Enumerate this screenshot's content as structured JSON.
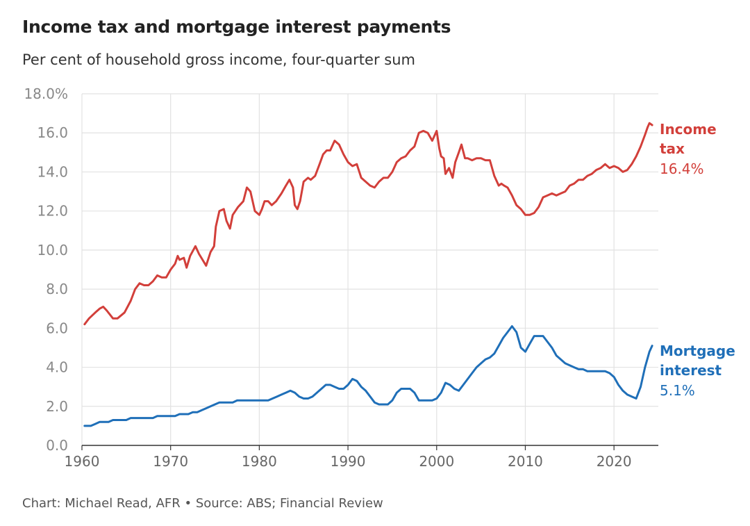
{
  "header": {
    "title": "Income tax and mortgage interest payments",
    "subtitle": "Per cent of household gross income, four-quarter sum"
  },
  "footer": {
    "credit": "Chart: Michael Read, AFR • Source: ABS; Financial Review"
  },
  "chart_data": {
    "type": "line",
    "title": "Income tax and mortgage interest payments",
    "subtitle": "Per cent of household gross income, four-quarter sum",
    "xlabel": "",
    "ylabel": "",
    "xlim": [
      1960,
      2025
    ],
    "ylim": [
      0,
      18
    ],
    "grid": true,
    "y_ticks": [
      "18.0%",
      "16.0",
      "14.0",
      "12.0",
      "10.0",
      "8.0",
      "6.0",
      "4.0",
      "2.0",
      "0.0"
    ],
    "y_tick_values": [
      18,
      16,
      14,
      12,
      10,
      8,
      6,
      4,
      2,
      0
    ],
    "x_ticks": [
      "1960",
      "1970",
      "1980",
      "1990",
      "2000",
      "2010",
      "2020"
    ],
    "x_tick_values": [
      1960,
      1970,
      1980,
      1990,
      2000,
      2010,
      2020
    ],
    "series": [
      {
        "name": "Income tax",
        "label_line1": "Income",
        "label_line2": "tax",
        "end_label": "16.4%",
        "color": "#d23f3a",
        "x": [
          1960.3,
          1960.8,
          1961.5,
          1962.0,
          1962.4,
          1962.8,
          1963.5,
          1964.0,
          1964.8,
          1965.5,
          1966.0,
          1966.5,
          1967.0,
          1967.5,
          1968.0,
          1968.5,
          1969.0,
          1969.5,
          1970.0,
          1970.5,
          1970.8,
          1971.0,
          1971.5,
          1971.8,
          1972.2,
          1972.8,
          1973.2,
          1973.6,
          1974.0,
          1974.5,
          1974.9,
          1975.1,
          1975.5,
          1976.0,
          1976.3,
          1976.7,
          1977.0,
          1977.3,
          1977.6,
          1977.8,
          1978.2,
          1978.6,
          1979.0,
          1979.5,
          1980.0,
          1980.3,
          1980.6,
          1981.0,
          1981.4,
          1981.9,
          1982.5,
          1983.0,
          1983.4,
          1983.8,
          1984.0,
          1984.3,
          1984.6,
          1985.0,
          1985.5,
          1985.8,
          1986.3,
          1986.8,
          1987.2,
          1987.6,
          1988.0,
          1988.5,
          1989.0,
          1989.5,
          1990.0,
          1990.5,
          1991.0,
          1991.5,
          1992.0,
          1992.5,
          1993.0,
          1993.5,
          1994.0,
          1994.5,
          1995.0,
          1995.5,
          1996.0,
          1996.5,
          1997.0,
          1997.5,
          1998.0,
          1998.5,
          1999.0,
          1999.5,
          2000.0,
          2000.3,
          2000.5,
          2000.8,
          2001.0,
          2001.4,
          2001.8,
          2002.1,
          2002.5,
          2002.8,
          2003.2,
          2003.5,
          2004.0,
          2004.5,
          2005.0,
          2005.5,
          2006.0,
          2006.5,
          2007.0,
          2007.3,
          2007.6,
          2008.0,
          2008.5,
          2009.0,
          2009.5,
          2010.0,
          2010.5,
          2011.0,
          2011.5,
          2012.0,
          2012.5,
          2013.0,
          2013.5,
          2014.0,
          2014.5,
          2015.0,
          2015.5,
          2016.0,
          2016.5,
          2017.0,
          2017.5,
          2018.0,
          2018.5,
          2019.0,
          2019.5,
          2020.0,
          2020.5,
          2021.0,
          2021.5,
          2022.0,
          2022.5,
          2023.0,
          2023.5,
          2023.8,
          2024.0,
          2024.3
        ],
        "values": [
          6.2,
          6.5,
          6.8,
          7.0,
          7.1,
          6.9,
          6.5,
          6.5,
          6.8,
          7.4,
          8.0,
          8.3,
          8.2,
          8.2,
          8.4,
          8.7,
          8.6,
          8.6,
          9.0,
          9.3,
          9.7,
          9.5,
          9.6,
          9.1,
          9.7,
          10.2,
          9.8,
          9.5,
          9.2,
          9.9,
          10.2,
          11.2,
          12.0,
          12.1,
          11.5,
          11.1,
          11.8,
          12.0,
          12.2,
          12.3,
          12.5,
          13.2,
          13.0,
          12.0,
          11.8,
          12.1,
          12.5,
          12.5,
          12.3,
          12.5,
          12.9,
          13.3,
          13.6,
          13.2,
          12.3,
          12.1,
          12.5,
          13.5,
          13.7,
          13.6,
          13.8,
          14.4,
          14.9,
          15.1,
          15.1,
          15.6,
          15.4,
          14.9,
          14.5,
          14.3,
          14.4,
          13.7,
          13.5,
          13.3,
          13.2,
          13.5,
          13.7,
          13.7,
          14.0,
          14.5,
          14.7,
          14.8,
          15.1,
          15.3,
          16.0,
          16.1,
          16.0,
          15.6,
          16.1,
          15.2,
          14.8,
          14.7,
          13.9,
          14.2,
          13.7,
          14.5,
          15.0,
          15.4,
          14.7,
          14.7,
          14.6,
          14.7,
          14.7,
          14.6,
          14.6,
          13.8,
          13.3,
          13.4,
          13.3,
          13.2,
          12.8,
          12.3,
          12.1,
          11.8,
          11.8,
          11.9,
          12.2,
          12.7,
          12.8,
          12.9,
          12.8,
          12.9,
          13.0,
          13.3,
          13.4,
          13.6,
          13.6,
          13.8,
          13.9,
          14.1,
          14.2,
          14.4,
          14.2,
          14.3,
          14.2,
          14.0,
          14.1,
          14.4,
          14.8,
          15.3,
          15.9,
          16.3,
          16.5,
          16.4
        ]
      },
      {
        "name": "Mortgage interest",
        "label_line1": "Mortgage",
        "label_line2": "interest",
        "end_label": "5.1%",
        "color": "#1f6fb8",
        "x": [
          1960.3,
          1961.0,
          1961.5,
          1962.0,
          1962.5,
          1963.0,
          1963.5,
          1964.0,
          1964.5,
          1965.0,
          1965.5,
          1966.0,
          1966.5,
          1967.0,
          1967.5,
          1968.0,
          1968.5,
          1969.0,
          1969.5,
          1970.0,
          1970.5,
          1971.0,
          1971.5,
          1972.0,
          1972.5,
          1973.0,
          1973.5,
          1974.0,
          1974.5,
          1975.0,
          1975.5,
          1976.0,
          1976.5,
          1977.0,
          1977.5,
          1978.0,
          1978.5,
          1979.0,
          1979.5,
          1980.0,
          1980.5,
          1981.0,
          1981.5,
          1982.0,
          1982.5,
          1983.0,
          1983.5,
          1984.0,
          1984.5,
          1985.0,
          1985.5,
          1986.0,
          1986.5,
          1987.0,
          1987.5,
          1988.0,
          1988.5,
          1989.0,
          1989.5,
          1990.0,
          1990.5,
          1991.0,
          1991.5,
          1992.0,
          1992.5,
          1993.0,
          1993.5,
          1994.0,
          1994.5,
          1995.0,
          1995.5,
          1996.0,
          1996.5,
          1997.0,
          1997.5,
          1998.0,
          1998.5,
          1999.0,
          1999.5,
          2000.0,
          2000.5,
          2001.0,
          2001.5,
          2002.0,
          2002.5,
          2003.0,
          2003.5,
          2004.0,
          2004.5,
          2005.0,
          2005.5,
          2006.0,
          2006.5,
          2007.0,
          2007.5,
          2008.0,
          2008.5,
          2009.0,
          2009.5,
          2010.0,
          2010.5,
          2011.0,
          2011.5,
          2012.0,
          2012.5,
          2013.0,
          2013.5,
          2014.0,
          2014.5,
          2015.0,
          2015.5,
          2016.0,
          2016.5,
          2017.0,
          2017.5,
          2018.0,
          2018.5,
          2019.0,
          2019.5,
          2020.0,
          2020.5,
          2021.0,
          2021.5,
          2022.0,
          2022.5,
          2023.0,
          2023.5,
          2024.0,
          2024.3
        ],
        "values": [
          1.0,
          1.0,
          1.1,
          1.2,
          1.2,
          1.2,
          1.3,
          1.3,
          1.3,
          1.3,
          1.4,
          1.4,
          1.4,
          1.4,
          1.4,
          1.4,
          1.5,
          1.5,
          1.5,
          1.5,
          1.5,
          1.6,
          1.6,
          1.6,
          1.7,
          1.7,
          1.8,
          1.9,
          2.0,
          2.1,
          2.2,
          2.2,
          2.2,
          2.2,
          2.3,
          2.3,
          2.3,
          2.3,
          2.3,
          2.3,
          2.3,
          2.3,
          2.4,
          2.5,
          2.6,
          2.7,
          2.8,
          2.7,
          2.5,
          2.4,
          2.4,
          2.5,
          2.7,
          2.9,
          3.1,
          3.1,
          3.0,
          2.9,
          2.9,
          3.1,
          3.4,
          3.3,
          3.0,
          2.8,
          2.5,
          2.2,
          2.1,
          2.1,
          2.1,
          2.3,
          2.7,
          2.9,
          2.9,
          2.9,
          2.7,
          2.3,
          2.3,
          2.3,
          2.3,
          2.4,
          2.7,
          3.2,
          3.1,
          2.9,
          2.8,
          3.1,
          3.4,
          3.7,
          4.0,
          4.2,
          4.4,
          4.5,
          4.7,
          5.1,
          5.5,
          5.8,
          6.1,
          5.8,
          5.0,
          4.8,
          5.2,
          5.6,
          5.6,
          5.6,
          5.3,
          5.0,
          4.6,
          4.4,
          4.2,
          4.1,
          4.0,
          3.9,
          3.9,
          3.8,
          3.8,
          3.8,
          3.8,
          3.8,
          3.7,
          3.5,
          3.1,
          2.8,
          2.6,
          2.5,
          2.4,
          3.0,
          4.0,
          4.8,
          5.1
        ]
      }
    ]
  }
}
